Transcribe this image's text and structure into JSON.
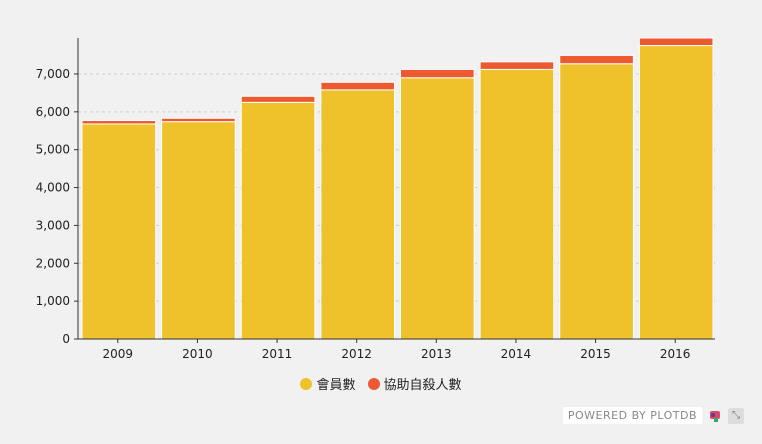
{
  "chart_data": {
    "type": "bar",
    "stacked": true,
    "categories": [
      "2009",
      "2010",
      "2011",
      "2012",
      "2013",
      "2014",
      "2015",
      "2016"
    ],
    "series": [
      {
        "name": "會員數",
        "color": "#efc12a",
        "values": [
          5680,
          5740,
          6250,
          6580,
          6900,
          7120,
          7270,
          7750
        ]
      },
      {
        "name": "協助自殺人數",
        "color": "#ee5a30",
        "values": [
          90,
          90,
          160,
          200,
          220,
          200,
          220,
          200
        ]
      }
    ],
    "y_ticks": [
      "0",
      "1,000",
      "2,000",
      "3,000",
      "4,000",
      "5,000",
      "6,000",
      "7,000"
    ],
    "ylim": [
      0,
      7950
    ],
    "grid": true,
    "legend_position": "bottom"
  },
  "branding": {
    "powered_label": "POWERED BY PLOTDB",
    "logo_icon": "plotdb-logo-icon",
    "expand_icon": "expand-icon",
    "expand_glyph": "⤡"
  }
}
